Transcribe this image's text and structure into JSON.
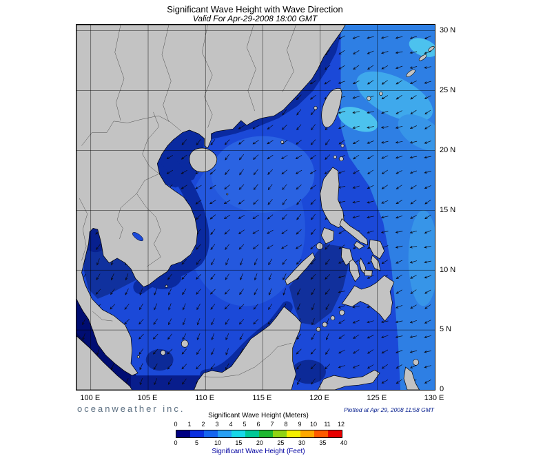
{
  "header": {
    "title": "Significant Wave Height with Wave Direction",
    "subtitle": "Valid For Apr-29-2008 18:00 GMT"
  },
  "axes": {
    "lon_labels": [
      "100 E",
      "105 E",
      "110 E",
      "115 E",
      "120 E",
      "125 E",
      "130 E"
    ],
    "lat_labels": [
      "30 N",
      "25 N",
      "20 N",
      "15 N",
      "10 N",
      "5 N",
      "0"
    ]
  },
  "legend": {
    "title_meters": "Significant Wave Height (Meters)",
    "title_feet": "Significant Wave Height (Feet)",
    "meter_ticks": [
      0,
      1,
      2,
      3,
      4,
      5,
      6,
      7,
      8,
      9,
      10,
      11,
      12
    ],
    "feet_ticks": [
      0,
      5,
      10,
      15,
      20,
      25,
      30,
      35,
      40
    ],
    "colors": [
      "#000082",
      "#0a2fe0",
      "#1565f0",
      "#28a0f5",
      "#18d8e8",
      "#00c896",
      "#1eb830",
      "#90d414",
      "#f5f000",
      "#ffa800",
      "#ff5a00",
      "#e80000"
    ]
  },
  "footer": {
    "credit": "oceanweather inc.",
    "plotted": "Plotted at Apr 29, 2008 11:58 GMT"
  }
}
